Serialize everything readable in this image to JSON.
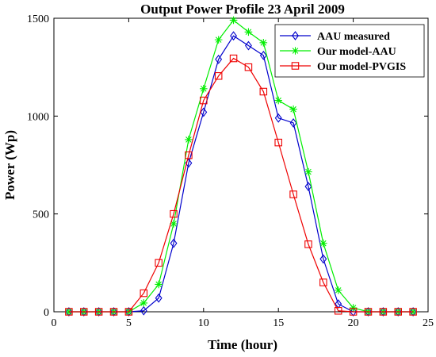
{
  "chart_data": {
    "type": "line",
    "title": "Output Power Profile 23 April 2009",
    "xlabel": "Time (hour)",
    "ylabel": "Power (Wp)",
    "xlim": [
      0,
      25
    ],
    "ylim": [
      0,
      1500
    ],
    "xticks": [
      0,
      5,
      10,
      15,
      20,
      25
    ],
    "yticks": [
      0,
      500,
      1000,
      1500
    ],
    "grid": false,
    "legend_position": "top-right",
    "x": [
      1,
      2,
      3,
      4,
      5,
      6,
      7,
      8,
      9,
      10,
      11,
      12,
      13,
      14,
      15,
      16,
      17,
      18,
      19,
      20,
      21,
      22,
      23,
      24
    ],
    "series": [
      {
        "name": "AAU measured",
        "color": "#0000cc",
        "marker": "diamond",
        "values": [
          0,
          0,
          0,
          0,
          0,
          5,
          70,
          350,
          760,
          1020,
          1290,
          1410,
          1360,
          1310,
          990,
          965,
          640,
          270,
          40,
          0,
          0,
          0,
          0,
          0
        ]
      },
      {
        "name": "Our model-AAU",
        "color": "#00ee00",
        "marker": "asterisk",
        "values": [
          0,
          0,
          0,
          0,
          0,
          45,
          140,
          450,
          880,
          1140,
          1390,
          1490,
          1430,
          1375,
          1080,
          1035,
          715,
          350,
          110,
          20,
          0,
          0,
          0,
          0
        ]
      },
      {
        "name": "Our model-PVGIS",
        "color": "#ee0000",
        "marker": "square",
        "values": [
          0,
          0,
          0,
          0,
          0,
          95,
          250,
          500,
          800,
          1080,
          1205,
          1295,
          1250,
          1125,
          865,
          600,
          345,
          150,
          5,
          0,
          0,
          0,
          0,
          0
        ]
      }
    ]
  }
}
